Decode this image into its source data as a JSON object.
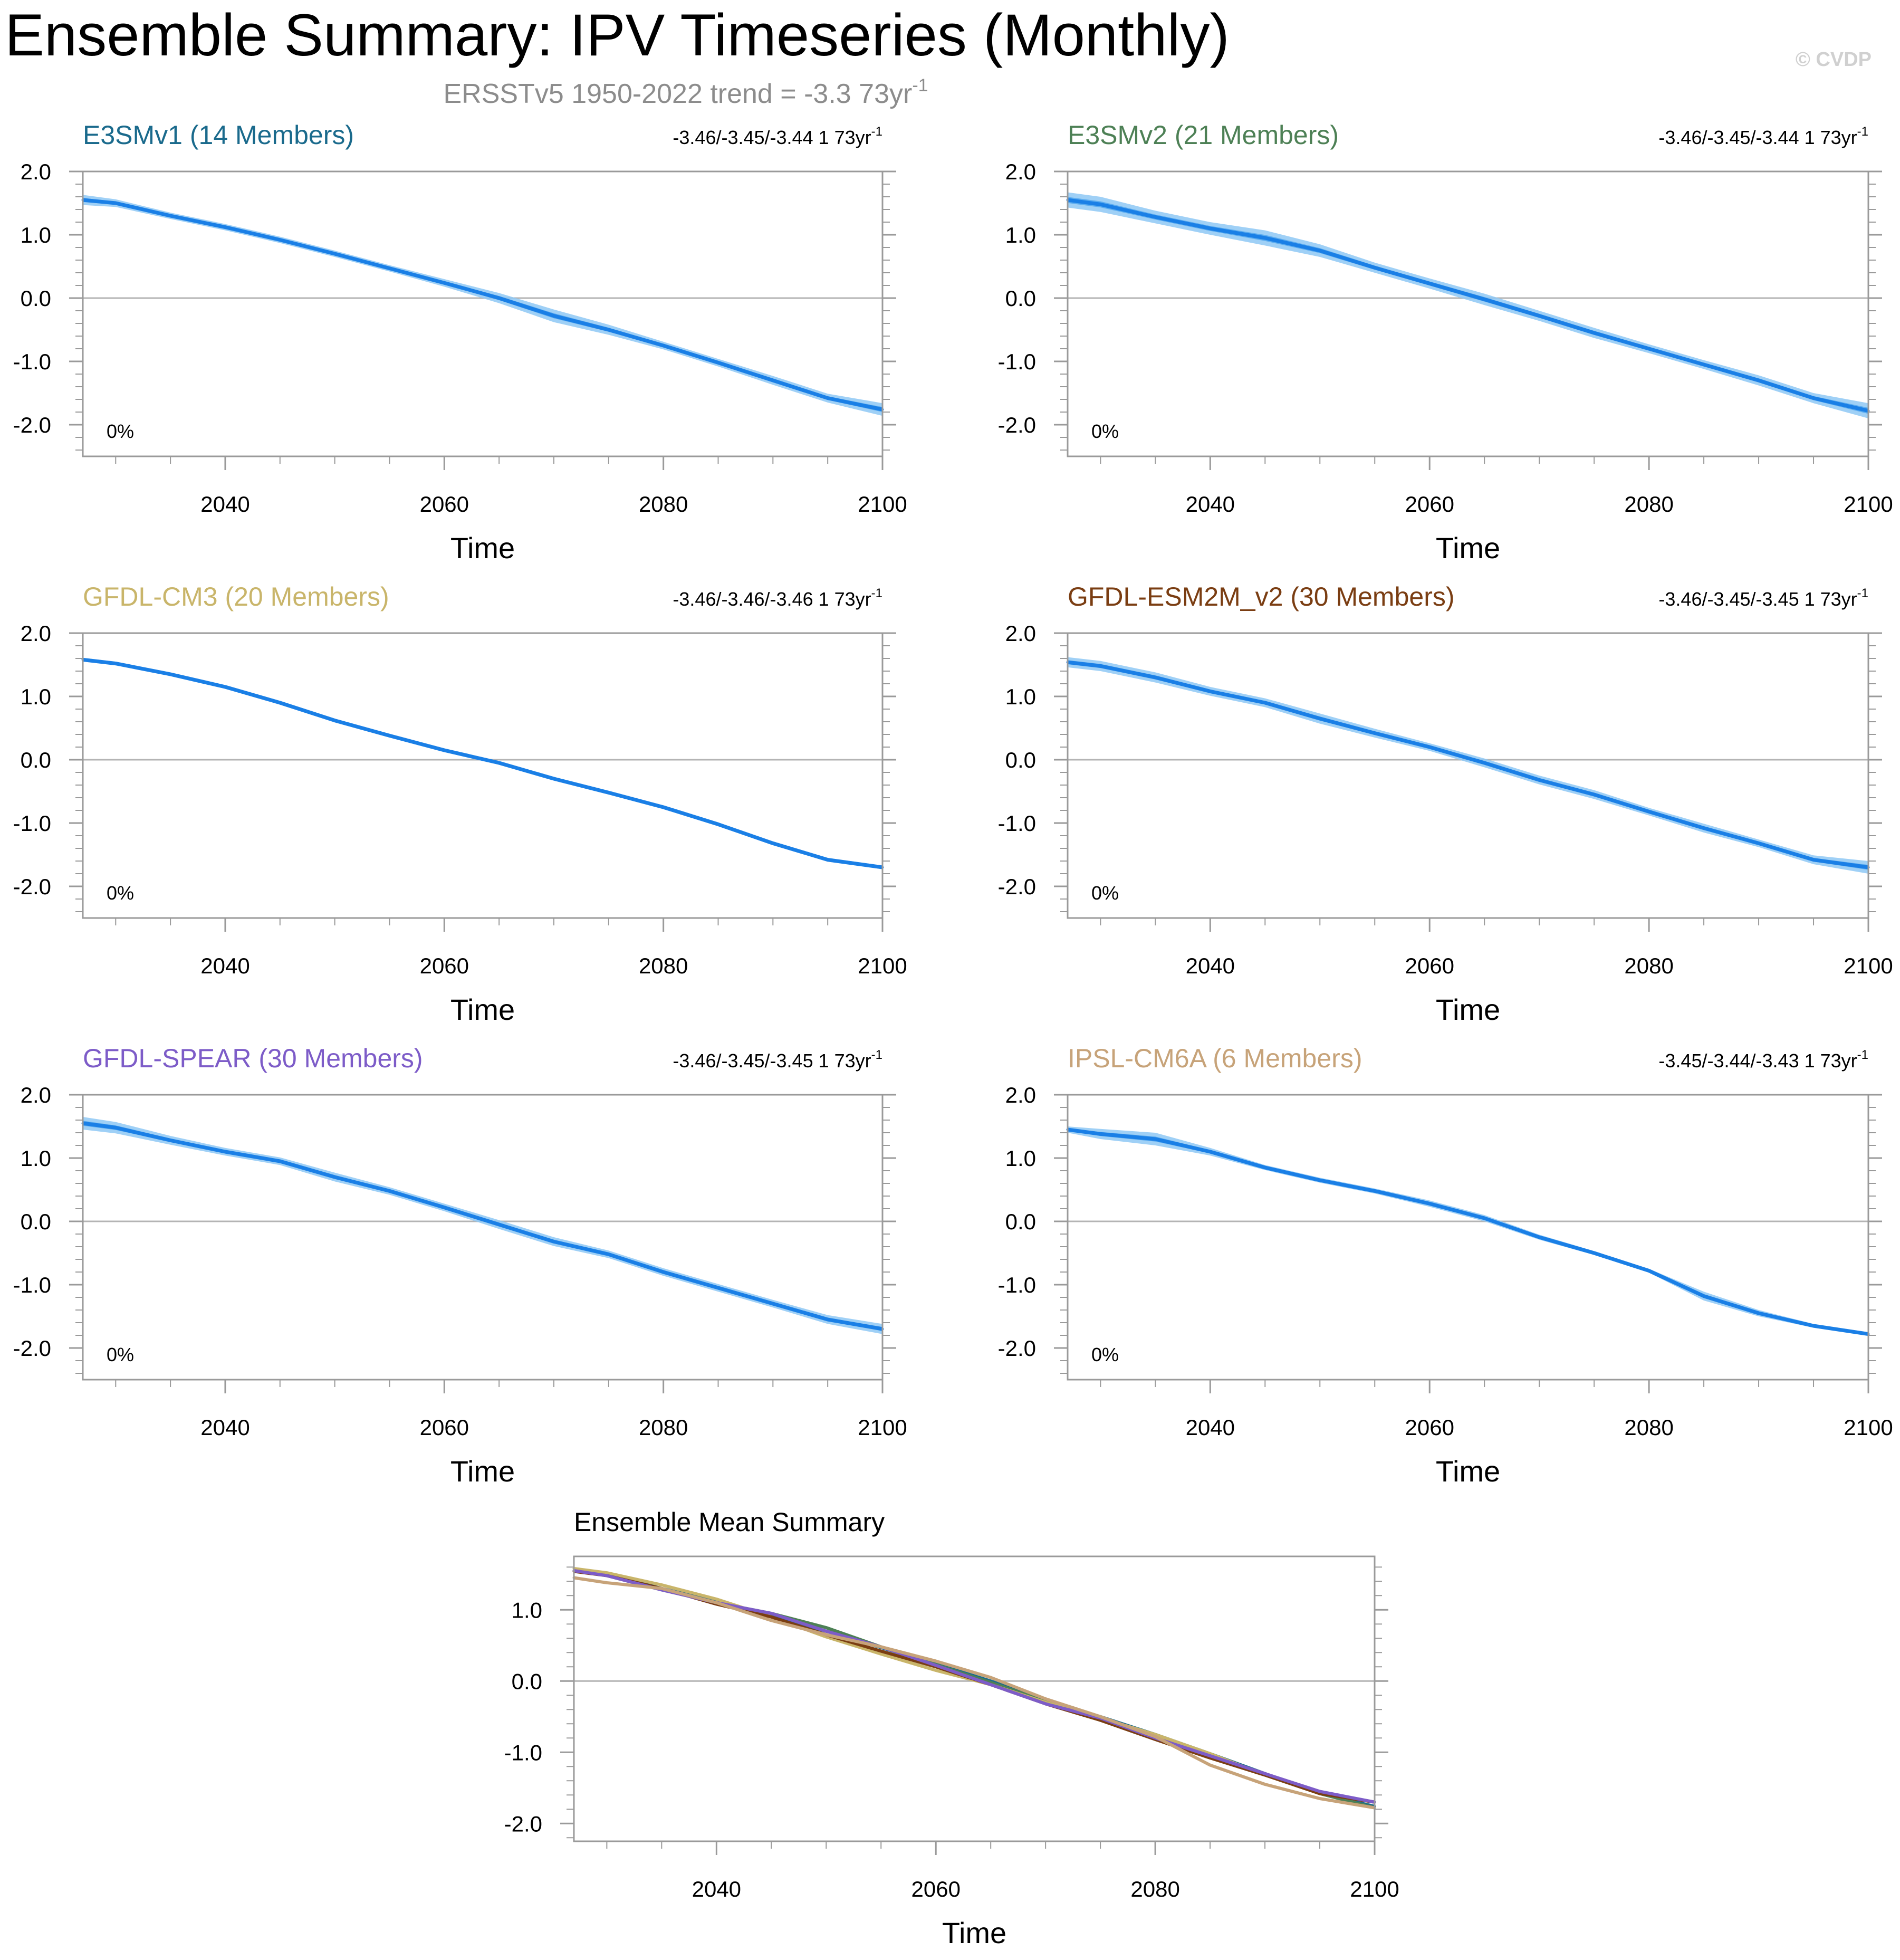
{
  "figure": {
    "title": "Ensemble Summary: IPV Timeseries (Monthly)",
    "subtitle_prefix": "ERSST",
    "subtitle_rest": "v5 1950-2022 trend = -3.3 73yr",
    "subtitle_sup": "-1",
    "copyright": "© CVDP",
    "colors": {
      "band": "#8ec8f5",
      "band_inner": "#4aa3ee",
      "mean_line": "#1a7fe6",
      "zero_line": "#b4b4b4",
      "frame": "#9a9a9a",
      "subtitle": "#8c8c8c",
      "copyright": "#d0d0d0"
    }
  },
  "chart_data": [
    {
      "type": "line",
      "title": "E3SMv1 (14 Members)",
      "title_color": "#1a6a8c",
      "trend_label": "-3.46/-3.45/-3.44 1 73yr",
      "trend_sup": "-1",
      "pct_label": "0%",
      "xlabel": "Time",
      "xlim": [
        2027,
        2100
      ],
      "ylim": [
        -2.5,
        2.0
      ],
      "xticks": [
        2040,
        2060,
        2080,
        2100
      ],
      "yticks": [
        -2.0,
        -1.0,
        0.0,
        1.0,
        2.0
      ],
      "ytick_labels": [
        "-2.0",
        "-1.0",
        "0.0",
        "1.0",
        "2.0"
      ],
      "x": [
        2027,
        2030,
        2035,
        2040,
        2045,
        2050,
        2055,
        2060,
        2065,
        2070,
        2075,
        2080,
        2085,
        2090,
        2095,
        2100
      ],
      "mean": [
        1.55,
        1.5,
        1.3,
        1.12,
        0.92,
        0.7,
        0.47,
        0.24,
        0.0,
        -0.28,
        -0.5,
        -0.75,
        -1.02,
        -1.3,
        -1.58,
        -1.76
      ],
      "spread": [
        0.08,
        0.06,
        0.05,
        0.05,
        0.05,
        0.05,
        0.05,
        0.06,
        0.08,
        0.1,
        0.08,
        0.06,
        0.06,
        0.07,
        0.07,
        0.1
      ]
    },
    {
      "type": "line",
      "title": "E3SMv2 (21 Members)",
      "title_color": "#4d8055",
      "trend_label": "-3.46/-3.45/-3.44 1 73yr",
      "trend_sup": "-1",
      "pct_label": "0%",
      "xlabel": "Time",
      "xlim": [
        2027,
        2100
      ],
      "ylim": [
        -2.5,
        2.0
      ],
      "xticks": [
        2040,
        2060,
        2080,
        2100
      ],
      "yticks": [
        -2.0,
        -1.0,
        0.0,
        1.0,
        2.0
      ],
      "ytick_labels": [
        "-2.0",
        "-1.0",
        "0.0",
        "1.0",
        "2.0"
      ],
      "x": [
        2027,
        2030,
        2035,
        2040,
        2045,
        2050,
        2055,
        2060,
        2065,
        2070,
        2075,
        2080,
        2085,
        2090,
        2095,
        2100
      ],
      "mean": [
        1.55,
        1.48,
        1.28,
        1.1,
        0.95,
        0.75,
        0.48,
        0.23,
        -0.02,
        -0.28,
        -0.55,
        -0.8,
        -1.05,
        -1.3,
        -1.58,
        -1.78
      ],
      "spread": [
        0.12,
        0.12,
        0.1,
        0.1,
        0.12,
        0.1,
        0.08,
        0.08,
        0.09,
        0.08,
        0.08,
        0.07,
        0.07,
        0.08,
        0.08,
        0.12
      ]
    },
    {
      "type": "line",
      "title": "GFDL-CM3 (20 Members)",
      "title_color": "#c9b56a",
      "trend_label": "-3.46/-3.46/-3.46 1 73yr",
      "trend_sup": "-1",
      "pct_label": "0%",
      "xlabel": "Time",
      "xlim": [
        2027,
        2100
      ],
      "ylim": [
        -2.5,
        2.0
      ],
      "xticks": [
        2040,
        2060,
        2080,
        2100
      ],
      "yticks": [
        -2.0,
        -1.0,
        0.0,
        1.0,
        2.0
      ],
      "ytick_labels": [
        "-2.0",
        "-1.0",
        "0.0",
        "1.0",
        "2.0"
      ],
      "x": [
        2027,
        2030,
        2035,
        2040,
        2045,
        2050,
        2055,
        2060,
        2065,
        2070,
        2075,
        2080,
        2085,
        2090,
        2095,
        2100
      ],
      "mean": [
        1.58,
        1.52,
        1.35,
        1.15,
        0.9,
        0.62,
        0.38,
        0.15,
        -0.05,
        -0.3,
        -0.52,
        -0.75,
        -1.02,
        -1.32,
        -1.58,
        -1.7
      ],
      "spread": [
        0.03,
        0.03,
        0.03,
        0.03,
        0.03,
        0.03,
        0.03,
        0.03,
        0.03,
        0.03,
        0.03,
        0.03,
        0.03,
        0.03,
        0.03,
        0.03
      ]
    },
    {
      "type": "line",
      "title": "GFDL-ESM2M_v2 (30 Members)",
      "title_color": "#7a3d12",
      "trend_label": "-3.46/-3.45/-3.45 1 73yr",
      "trend_sup": "-1",
      "pct_label": "0%",
      "xlabel": "Time",
      "xlim": [
        2027,
        2100
      ],
      "ylim": [
        -2.5,
        2.0
      ],
      "xticks": [
        2040,
        2060,
        2080,
        2100
      ],
      "yticks": [
        -2.0,
        -1.0,
        0.0,
        1.0,
        2.0
      ],
      "ytick_labels": [
        "-2.0",
        "-1.0",
        "0.0",
        "1.0",
        "2.0"
      ],
      "x": [
        2027,
        2030,
        2035,
        2040,
        2045,
        2050,
        2055,
        2060,
        2065,
        2070,
        2075,
        2080,
        2085,
        2090,
        2095,
        2100
      ],
      "mean": [
        1.54,
        1.48,
        1.3,
        1.08,
        0.9,
        0.65,
        0.42,
        0.2,
        -0.05,
        -0.32,
        -0.55,
        -0.82,
        -1.08,
        -1.32,
        -1.58,
        -1.7
      ],
      "spread": [
        0.08,
        0.08,
        0.08,
        0.07,
        0.07,
        0.08,
        0.07,
        0.06,
        0.07,
        0.07,
        0.07,
        0.06,
        0.07,
        0.06,
        0.07,
        0.1
      ]
    },
    {
      "type": "line",
      "title": "GFDL-SPEAR (30 Members)",
      "title_color": "#7d5cc8",
      "trend_label": "-3.46/-3.45/-3.45 1 73yr",
      "trend_sup": "-1",
      "pct_label": "0%",
      "xlabel": "Time",
      "xlim": [
        2027,
        2100
      ],
      "ylim": [
        -2.5,
        2.0
      ],
      "xticks": [
        2040,
        2060,
        2080,
        2100
      ],
      "yticks": [
        -2.0,
        -1.0,
        0.0,
        1.0,
        2.0
      ],
      "ytick_labels": [
        "-2.0",
        "-1.0",
        "0.0",
        "1.0",
        "2.0"
      ],
      "x": [
        2027,
        2030,
        2035,
        2040,
        2045,
        2050,
        2055,
        2060,
        2065,
        2070,
        2075,
        2080,
        2085,
        2090,
        2095,
        2100
      ],
      "mean": [
        1.55,
        1.48,
        1.28,
        1.1,
        0.95,
        0.7,
        0.48,
        0.22,
        -0.05,
        -0.32,
        -0.52,
        -0.8,
        -1.05,
        -1.3,
        -1.55,
        -1.7
      ],
      "spread": [
        0.1,
        0.09,
        0.07,
        0.06,
        0.06,
        0.07,
        0.06,
        0.06,
        0.07,
        0.07,
        0.06,
        0.06,
        0.06,
        0.06,
        0.07,
        0.08
      ]
    },
    {
      "type": "line",
      "title": "IPSL-CM6A (6 Members)",
      "title_color": "#c7a379",
      "trend_label": "-3.45/-3.44/-3.43 1 73yr",
      "trend_sup": "-1",
      "pct_label": "0%",
      "xlabel": "Time",
      "xlim": [
        2027,
        2100
      ],
      "ylim": [
        -2.5,
        2.0
      ],
      "xticks": [
        2040,
        2060,
        2080,
        2100
      ],
      "yticks": [
        -2.0,
        -1.0,
        0.0,
        1.0,
        2.0
      ],
      "ytick_labels": [
        "-2.0",
        "-1.0",
        "0.0",
        "1.0",
        "2.0"
      ],
      "x": [
        2027,
        2030,
        2035,
        2040,
        2045,
        2050,
        2055,
        2060,
        2065,
        2070,
        2075,
        2080,
        2085,
        2090,
        2095,
        2100
      ],
      "mean": [
        1.45,
        1.38,
        1.3,
        1.1,
        0.85,
        0.65,
        0.48,
        0.28,
        0.05,
        -0.25,
        -0.5,
        -0.78,
        -1.18,
        -1.45,
        -1.65,
        -1.78
      ],
      "spread": [
        0.05,
        0.08,
        0.1,
        0.06,
        0.04,
        0.04,
        0.04,
        0.05,
        0.05,
        0.04,
        0.03,
        0.03,
        0.07,
        0.05,
        0.03,
        0.03
      ]
    },
    {
      "type": "line",
      "title": "Ensemble Mean Summary",
      "xlabel": "Time",
      "xlim": [
        2027,
        2100
      ],
      "ylim": [
        -2.25,
        1.75
      ],
      "xticks": [
        2040,
        2060,
        2080,
        2100
      ],
      "yticks": [
        -2.0,
        -1.0,
        0.0,
        1.0
      ],
      "ytick_labels": [
        "-2.0",
        "-1.0",
        "0.0",
        "1.0"
      ],
      "x": [
        2027,
        2030,
        2035,
        2040,
        2045,
        2050,
        2055,
        2060,
        2065,
        2070,
        2075,
        2080,
        2085,
        2090,
        2095,
        2100
      ],
      "series": [
        {
          "name": "E3SMv1",
          "color": "#1a6a8c",
          "values": [
            1.55,
            1.5,
            1.3,
            1.12,
            0.92,
            0.7,
            0.47,
            0.24,
            0.0,
            -0.28,
            -0.5,
            -0.75,
            -1.02,
            -1.3,
            -1.58,
            -1.76
          ]
        },
        {
          "name": "E3SMv2",
          "color": "#4d8055",
          "values": [
            1.55,
            1.48,
            1.28,
            1.1,
            0.95,
            0.75,
            0.48,
            0.23,
            -0.02,
            -0.28,
            -0.55,
            -0.8,
            -1.05,
            -1.3,
            -1.58,
            -1.78
          ]
        },
        {
          "name": "GFDL-CM3",
          "color": "#c9b56a",
          "values": [
            1.58,
            1.52,
            1.35,
            1.15,
            0.9,
            0.62,
            0.38,
            0.15,
            -0.05,
            -0.3,
            -0.52,
            -0.75,
            -1.02,
            -1.32,
            -1.58,
            -1.7
          ]
        },
        {
          "name": "GFDL-ESM2M_v2",
          "color": "#7a3d12",
          "values": [
            1.54,
            1.48,
            1.3,
            1.08,
            0.9,
            0.65,
            0.42,
            0.2,
            -0.05,
            -0.32,
            -0.55,
            -0.82,
            -1.08,
            -1.32,
            -1.58,
            -1.7
          ]
        },
        {
          "name": "GFDL-SPEAR",
          "color": "#7d5cc8",
          "values": [
            1.55,
            1.48,
            1.28,
            1.1,
            0.95,
            0.7,
            0.48,
            0.22,
            -0.05,
            -0.32,
            -0.52,
            -0.8,
            -1.05,
            -1.3,
            -1.55,
            -1.7
          ]
        },
        {
          "name": "IPSL-CM6A",
          "color": "#c7a379",
          "values": [
            1.45,
            1.38,
            1.3,
            1.1,
            0.85,
            0.65,
            0.48,
            0.28,
            0.05,
            -0.25,
            -0.5,
            -0.78,
            -1.18,
            -1.45,
            -1.65,
            -1.78
          ]
        }
      ]
    }
  ]
}
